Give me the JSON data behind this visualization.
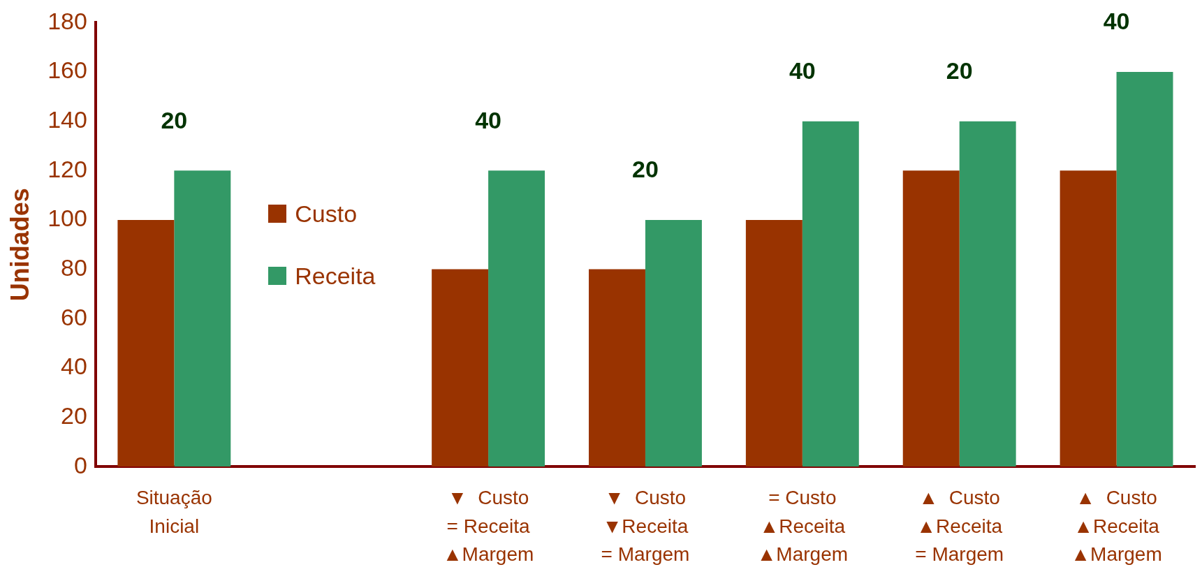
{
  "chart_data": {
    "type": "bar",
    "ylabel": "Unidades",
    "categories": [
      "Situação\nInicial",
      null,
      "▼  Custo\n= Receita\n▲Margem",
      "▼  Custo\n▼Receita\n= Margem",
      "= Custo\n▲Receita\n▲Margem",
      "▲  Custo\n▲Receita\n= Margem",
      "▲  Custo\n▲Receita\n▲Margem"
    ],
    "series": [
      {
        "name": "Custo",
        "color": "#993300",
        "values": [
          100,
          null,
          80,
          80,
          100,
          120,
          120
        ]
      },
      {
        "name": "Receita",
        "color": "#339966",
        "values": [
          120,
          null,
          120,
          100,
          140,
          140,
          160
        ]
      }
    ],
    "ylim": [
      0,
      180
    ],
    "yticks": [
      0,
      20,
      40,
      60,
      80,
      100,
      120,
      140,
      160,
      180
    ],
    "grid": false,
    "legend": "left",
    "annotations": [
      "20",
      "40",
      "20",
      "40",
      "20",
      "40"
    ]
  }
}
